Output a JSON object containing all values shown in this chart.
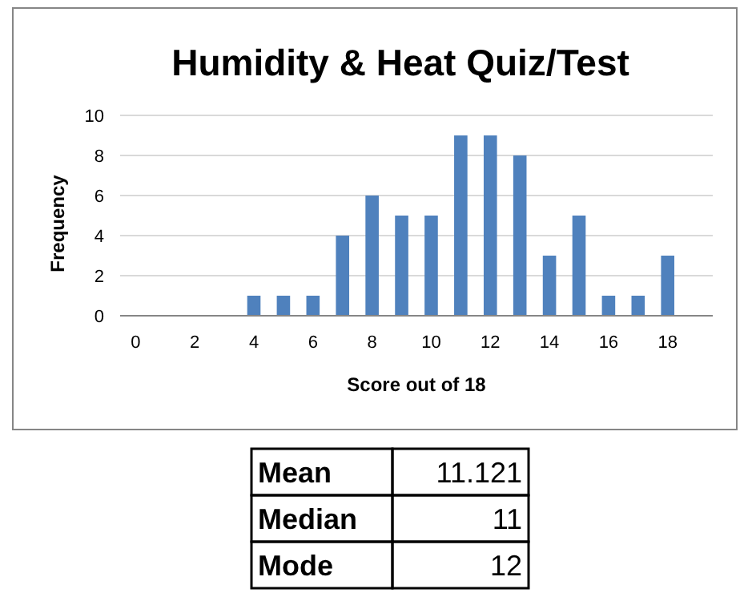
{
  "chart_data": {
    "type": "bar",
    "title": "Humidity & Heat Quiz/Test",
    "xlabel": "Score out of 18",
    "ylabel": "Frequency",
    "categories": [
      "0",
      null,
      "2",
      null,
      "4",
      null,
      "6",
      null,
      "8",
      null,
      "10",
      null,
      "12",
      null,
      "14",
      null,
      "16",
      null,
      "18",
      null
    ],
    "values": [
      0,
      0,
      0,
      0,
      1,
      1,
      1,
      4,
      6,
      5,
      5,
      9,
      9,
      8,
      3,
      5,
      1,
      1,
      3,
      0
    ],
    "color": "#4f81bd",
    "ylim": [
      0,
      10
    ],
    "yticks": [
      0,
      2,
      4,
      6,
      8,
      10
    ],
    "grid": "y",
    "annotations": [
      "Mean",
      "11.121",
      "Median",
      "11",
      "Mode",
      "12"
    ]
  }
}
